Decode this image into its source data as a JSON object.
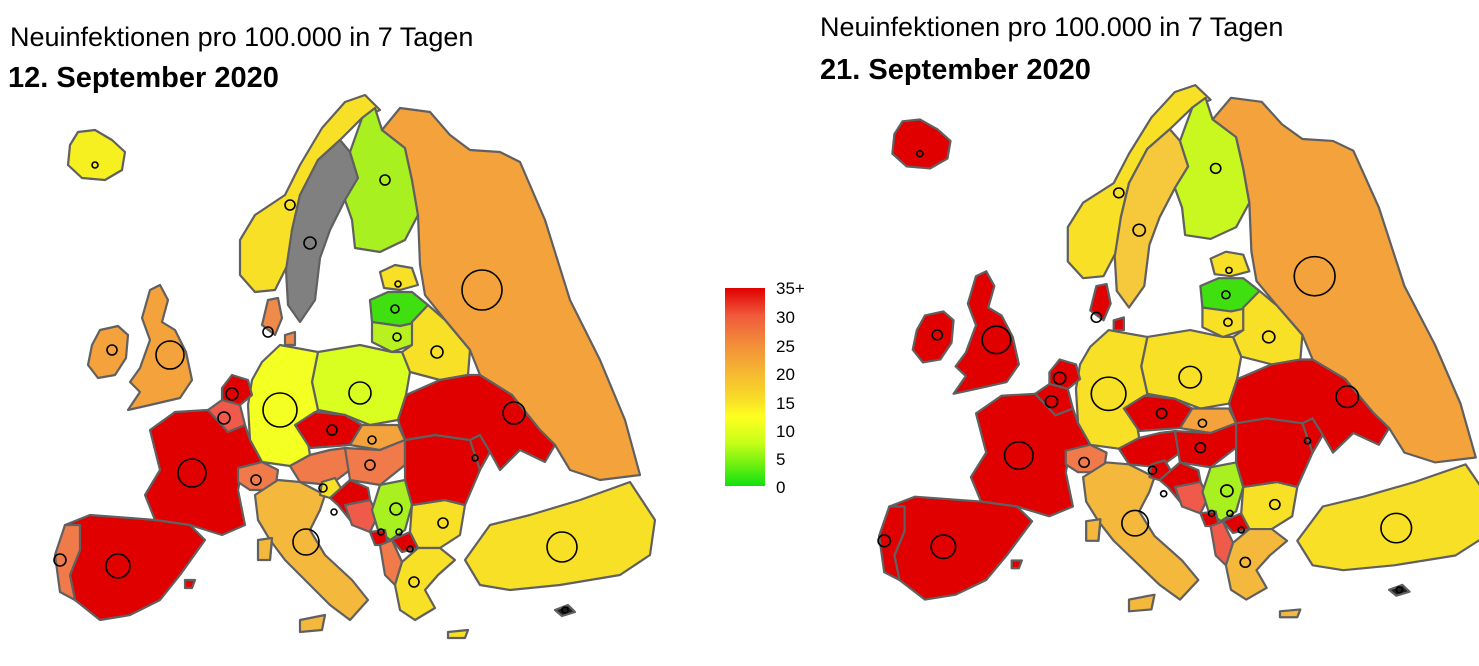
{
  "legend": {
    "labels": [
      "35+",
      "30",
      "25",
      "20",
      "15",
      "10",
      "5",
      "0"
    ],
    "colors": {
      "red": "#e00000",
      "orange": "#f28c3a",
      "yellow": "#f8e026",
      "green": "#10e010",
      "no_data": "#808080"
    }
  },
  "maps": [
    {
      "subtitle": "Neuinfektionen pro 100.000 in 7 Tagen",
      "date": "12. September 2020",
      "countries": [
        {
          "name": "Iceland",
          "color": "#f6f021"
        },
        {
          "name": "Ireland",
          "color": "#f4a23c"
        },
        {
          "name": "United Kingdom",
          "color": "#f4a23c"
        },
        {
          "name": "Norway",
          "color": "#f8e026"
        },
        {
          "name": "Sweden",
          "color": "#808080"
        },
        {
          "name": "Finland",
          "color": "#a8f020"
        },
        {
          "name": "Russia",
          "color": "#f4a23c"
        },
        {
          "name": "Estonia",
          "color": "#f8e026"
        },
        {
          "name": "Latvia",
          "color": "#40e010"
        },
        {
          "name": "Lithuania",
          "color": "#b8f020"
        },
        {
          "name": "Belarus",
          "color": "#f8e026"
        },
        {
          "name": "Denmark",
          "color": "#f08a4a"
        },
        {
          "name": "Poland",
          "color": "#d8ff20"
        },
        {
          "name": "Germany",
          "color": "#f4ff22"
        },
        {
          "name": "Netherlands",
          "color": "#e00000"
        },
        {
          "name": "Belgium",
          "color": "#f05a4a"
        },
        {
          "name": "France",
          "color": "#e00000"
        },
        {
          "name": "Spain",
          "color": "#e00000"
        },
        {
          "name": "Portugal",
          "color": "#f07a4a"
        },
        {
          "name": "Switzerland",
          "color": "#f07a4a"
        },
        {
          "name": "Austria",
          "color": "#f07a4a"
        },
        {
          "name": "Czechia",
          "color": "#e00000"
        },
        {
          "name": "Slovakia",
          "color": "#f4a23c"
        },
        {
          "name": "Hungary",
          "color": "#f07a4a"
        },
        {
          "name": "Italy",
          "color": "#f4b83c"
        },
        {
          "name": "Slovenia",
          "color": "#f8e026"
        },
        {
          "name": "Croatia",
          "color": "#e00000"
        },
        {
          "name": "Bosnia",
          "color": "#f05a4a"
        },
        {
          "name": "Serbia",
          "color": "#a8f020"
        },
        {
          "name": "Montenegro",
          "color": "#e00000"
        },
        {
          "name": "Albania",
          "color": "#f07a4a"
        },
        {
          "name": "North Macedonia",
          "color": "#e00000"
        },
        {
          "name": "Bulgaria",
          "color": "#f8e026"
        },
        {
          "name": "Romania",
          "color": "#e00000"
        },
        {
          "name": "Moldova",
          "color": "#e00000"
        },
        {
          "name": "Ukraine",
          "color": "#e00000"
        },
        {
          "name": "Greece",
          "color": "#f8e026"
        },
        {
          "name": "Turkey",
          "color": "#f8e026"
        },
        {
          "name": "Cyprus",
          "color": "#202020"
        }
      ]
    },
    {
      "subtitle": "Neuinfektionen pro 100.000 in 7 Tagen",
      "date": "21. September 2020",
      "countries": [
        {
          "name": "Iceland",
          "color": "#e00000"
        },
        {
          "name": "Ireland",
          "color": "#e00000"
        },
        {
          "name": "United Kingdom",
          "color": "#e00000"
        },
        {
          "name": "Norway",
          "color": "#f8e026"
        },
        {
          "name": "Sweden",
          "color": "#f6c83c"
        },
        {
          "name": "Finland",
          "color": "#c8f820"
        },
        {
          "name": "Russia",
          "color": "#f4a23c"
        },
        {
          "name": "Estonia",
          "color": "#f8e026"
        },
        {
          "name": "Latvia",
          "color": "#40e010"
        },
        {
          "name": "Lithuania",
          "color": "#f8e026"
        },
        {
          "name": "Belarus",
          "color": "#f8e026"
        },
        {
          "name": "Denmark",
          "color": "#e00000"
        },
        {
          "name": "Poland",
          "color": "#f8e026"
        },
        {
          "name": "Germany",
          "color": "#f8e026"
        },
        {
          "name": "Netherlands",
          "color": "#e00000"
        },
        {
          "name": "Belgium",
          "color": "#e00000"
        },
        {
          "name": "France",
          "color": "#e00000"
        },
        {
          "name": "Spain",
          "color": "#e00000"
        },
        {
          "name": "Portugal",
          "color": "#e00000"
        },
        {
          "name": "Switzerland",
          "color": "#f07a4a"
        },
        {
          "name": "Austria",
          "color": "#e00000"
        },
        {
          "name": "Czechia",
          "color": "#e00000"
        },
        {
          "name": "Slovakia",
          "color": "#f4a23c"
        },
        {
          "name": "Hungary",
          "color": "#e00000"
        },
        {
          "name": "Italy",
          "color": "#f4b83c"
        },
        {
          "name": "Slovenia",
          "color": "#e00000"
        },
        {
          "name": "Croatia",
          "color": "#e00000"
        },
        {
          "name": "Bosnia",
          "color": "#f05a4a"
        },
        {
          "name": "Serbia",
          "color": "#a8f020"
        },
        {
          "name": "Montenegro",
          "color": "#e00000"
        },
        {
          "name": "Albania",
          "color": "#f05a4a"
        },
        {
          "name": "North Macedonia",
          "color": "#e00000"
        },
        {
          "name": "Bulgaria",
          "color": "#f8e026"
        },
        {
          "name": "Romania",
          "color": "#e00000"
        },
        {
          "name": "Moldova",
          "color": "#e00000"
        },
        {
          "name": "Ukraine",
          "color": "#e00000"
        },
        {
          "name": "Greece",
          "color": "#f4b83c"
        },
        {
          "name": "Turkey",
          "color": "#f8e026"
        },
        {
          "name": "Cyprus",
          "color": "#202020"
        }
      ]
    }
  ]
}
